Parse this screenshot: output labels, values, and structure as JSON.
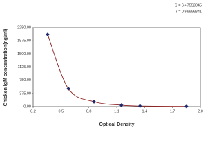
{
  "chart_data": {
    "type": "scatter",
    "annotations": [
      "S = 6.47552045",
      "r = 0.99996841"
    ],
    "x_label": "Optical Density",
    "y_label": "Chicken IgM concentration(ng/ml)",
    "series": [
      {
        "color": "#1f2a6e",
        "line_color": "#8b1a1a",
        "x": [
          0.356,
          0.58,
          0.855,
          1.15,
          1.35,
          1.85
        ],
        "values": [
          2054,
          508,
          137,
          40,
          15,
          5
        ]
      }
    ],
    "xlim": [
      0.2,
      2.0
    ],
    "xticks": [
      0.2,
      0.5,
      0.8,
      1.1,
      1.4,
      1.7,
      {
        "value": 2,
        "label": "2.0"
      }
    ],
    "ylim": [
      0,
      2250
    ],
    "yticks": [
      {
        "value": 0,
        "label": "0.00"
      },
      {
        "value": 375,
        "label": "375.00"
      },
      {
        "value": 750,
        "label": "750.00"
      },
      {
        "value": 1125,
        "label": "1125.00"
      },
      {
        "value": 1500,
        "label": "1500.00"
      },
      {
        "value": 1875,
        "label": "1875.00"
      },
      {
        "value": 2250,
        "label": "2250.00"
      }
    ]
  }
}
